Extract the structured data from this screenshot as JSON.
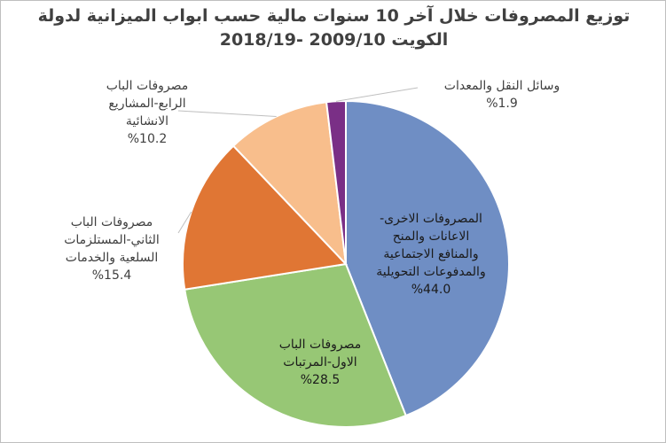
{
  "chart_data": {
    "type": "pie",
    "title_lines": [
      "توزيع المصروفات خلال آخر 10 سنوات مالية حسب ابواب الميزانية لدولة",
      "الكويت 2009/10 -2018/19"
    ],
    "slices": [
      {
        "label_lines": [
          "المصروفات الاخرى-",
          "الاعانات والمنح",
          "والمنافع الاجتماعية",
          "والمدفوعات التحويلية"
        ],
        "value": 44.0,
        "value_label": "%44.0",
        "color": "#6f8ec4"
      },
      {
        "label_lines": [
          "مصروفات الباب",
          "الاول-المرتبات"
        ],
        "value": 28.5,
        "value_label": "%28.5",
        "color": "#97c775"
      },
      {
        "label_lines": [
          "مصروفات الباب",
          "الثاني-المستلزمات",
          "السلعية والخدمات"
        ],
        "value": 15.4,
        "value_label": "%15.4",
        "color": "#e07634"
      },
      {
        "label_lines": [
          "مصروفات الباب",
          "الرابع-المشاريع",
          "الانشائية"
        ],
        "value": 10.2,
        "value_label": "%10.2",
        "color": "#f8be8c"
      },
      {
        "label_lines": [
          "وسائل النقل والمعدات"
        ],
        "value": 1.9,
        "value_label": "%1.9",
        "color": "#7a2f86"
      }
    ],
    "start_angle_deg": 0,
    "direction": "clockwise",
    "legend": "none"
  }
}
